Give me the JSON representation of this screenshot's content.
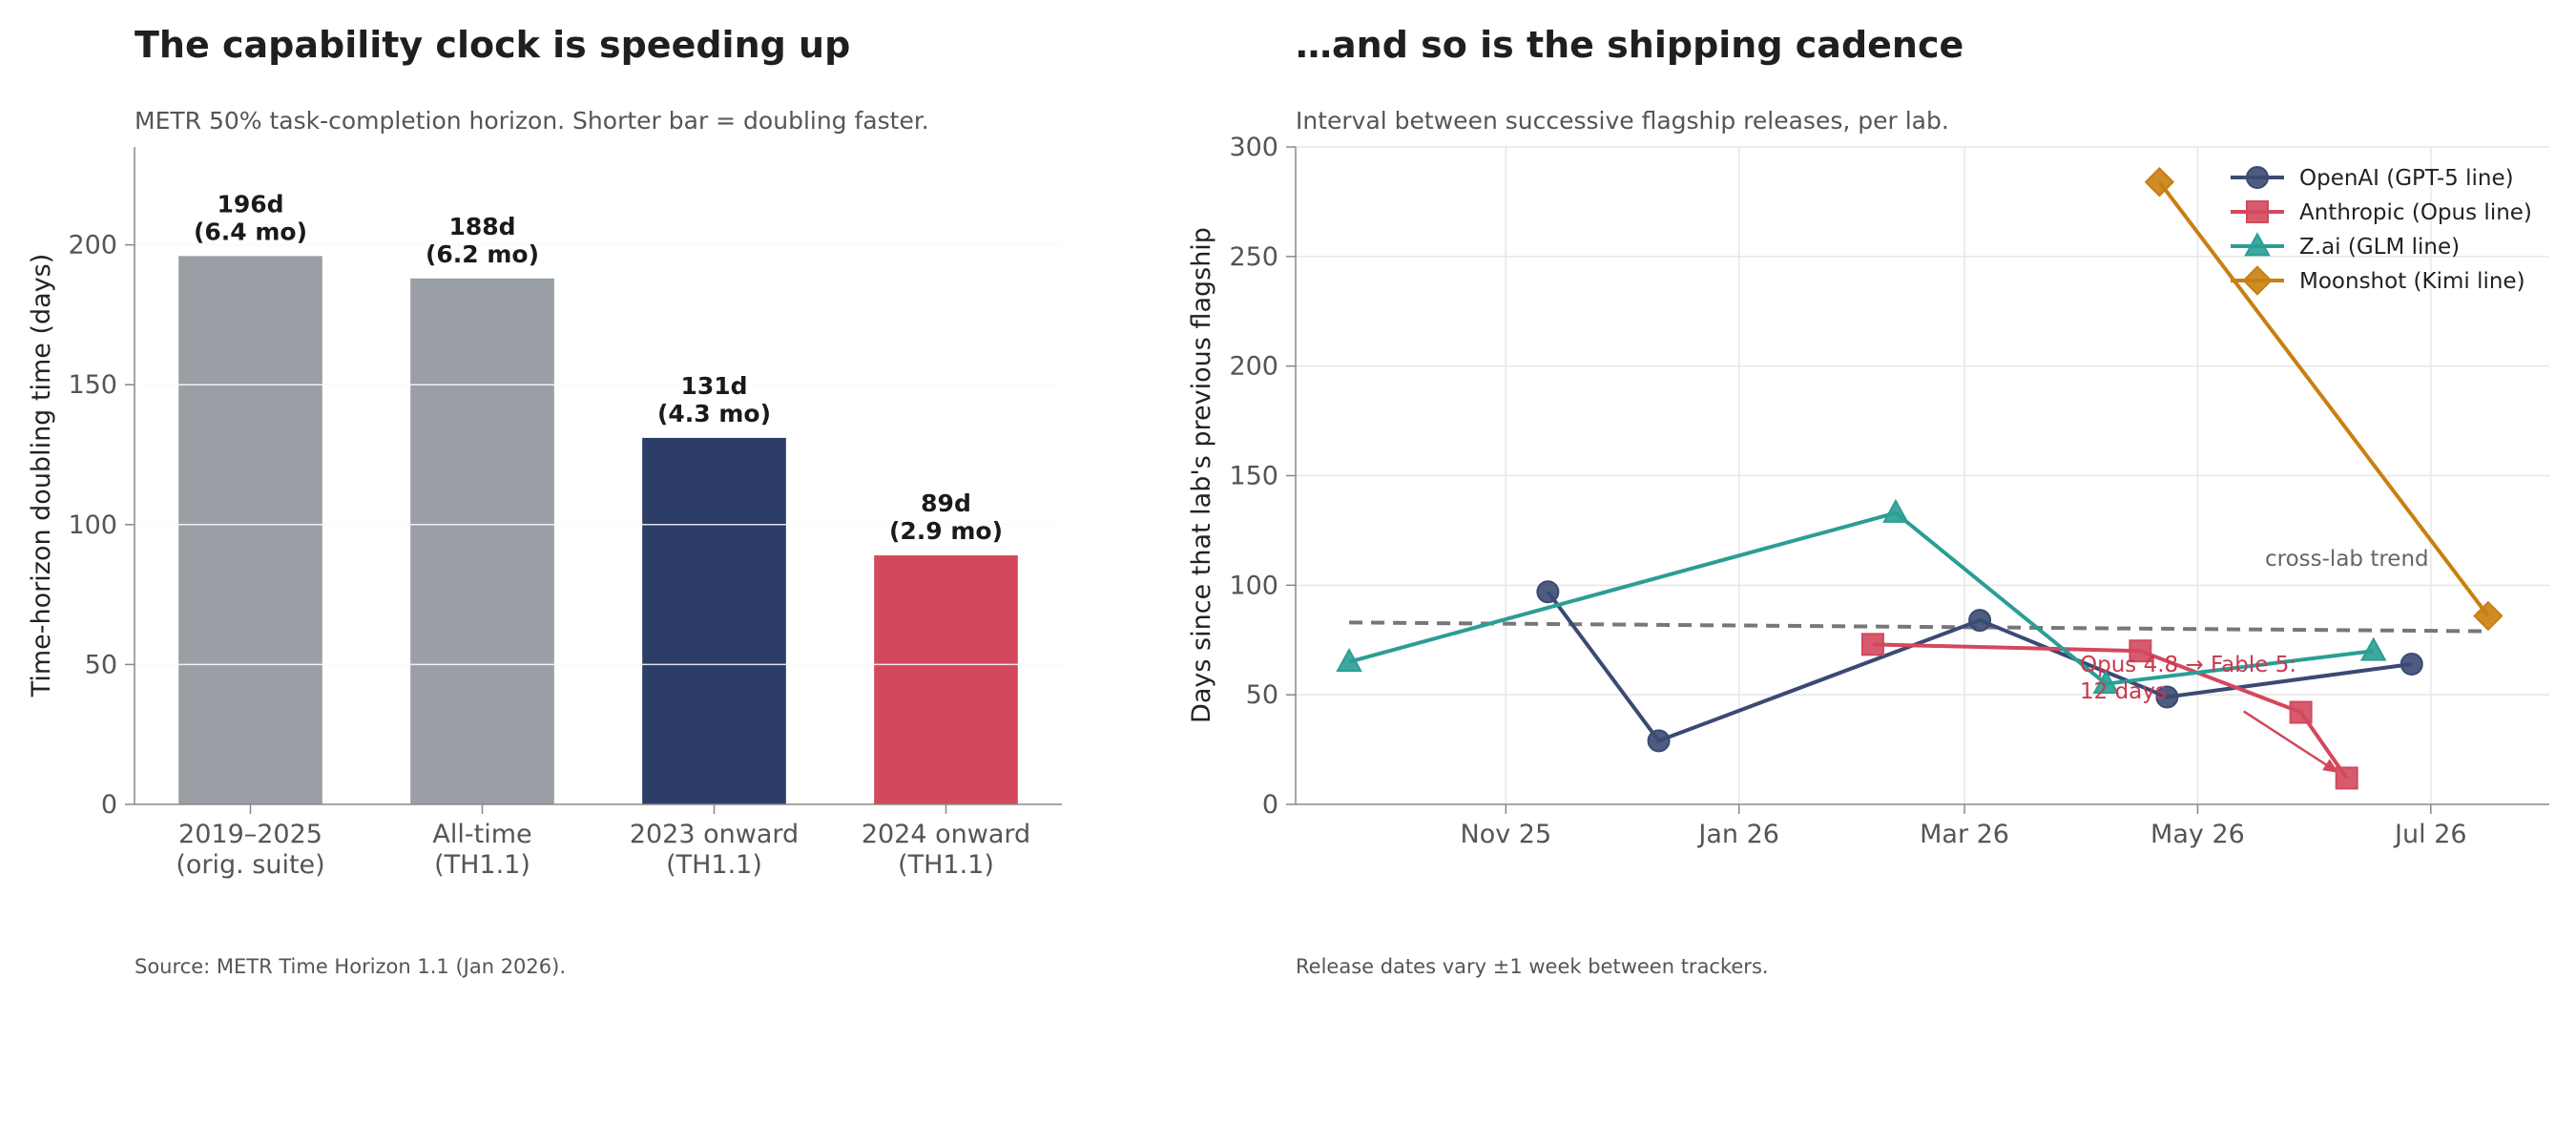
{
  "colors": {
    "grey_bar": "#9a9fa6",
    "navy": "#2c3d68",
    "red": "#d2495d",
    "openai": "#3b4a73",
    "anthropic": "#d2495d",
    "zai": "#2a9e94",
    "moonshot": "#c97f10",
    "trend": "#777777"
  },
  "chart_data": [
    {
      "type": "bar",
      "title": "The capability clock is speeding up",
      "subtitle": "METR 50% task-completion horizon. Shorter bar = doubling faster.",
      "ylabel": "Time-horizon doubling time (days)",
      "ylim": [
        0,
        235
      ],
      "yticks": [
        0,
        50,
        100,
        150,
        200
      ],
      "grid": "horizontal",
      "categories": [
        [
          "2019–2025",
          "(orig. suite)"
        ],
        [
          "All-time",
          "(TH1.1)"
        ],
        [
          "2023 onward",
          "(TH1.1)"
        ],
        [
          "2024 onward",
          "(TH1.1)"
        ]
      ],
      "values": [
        196,
        188,
        131,
        89
      ],
      "value_labels": [
        [
          "196d",
          "(6.4 mo)"
        ],
        [
          "188d",
          "(6.2 mo)"
        ],
        [
          "131d",
          "(4.3 mo)"
        ],
        [
          "89d",
          "(2.9 mo)"
        ]
      ],
      "bar_colors": [
        "#9a9fa6",
        "#9a9fa6",
        "#2c3d68",
        "#d2495d"
      ],
      "footnote": "Source: METR Time Horizon 1.1 (Jan 2026)."
    },
    {
      "type": "line",
      "title": "…and so is the shipping cadence",
      "subtitle": "Interval between successive flagship releases, per lab.",
      "ylabel": "Days since that lab's previous flagship",
      "ylim": [
        0,
        300
      ],
      "yticks": [
        0,
        50,
        100,
        150,
        200,
        250,
        300
      ],
      "xlim": [
        "2025-09-07",
        "2026-08-01"
      ],
      "xticks": [
        {
          "date": "2025-11-01",
          "label": "Nov 25"
        },
        {
          "date": "2026-01-01",
          "label": "Jan 26"
        },
        {
          "date": "2026-03-01",
          "label": "Mar 26"
        },
        {
          "date": "2026-05-01",
          "label": "May 26"
        },
        {
          "date": "2026-07-01",
          "label": "Jul 26"
        }
      ],
      "grid": "both",
      "legend_position": "top-right",
      "series": [
        {
          "name": "OpenAI (GPT-5 line)",
          "color": "#3b4a73",
          "marker": "circle",
          "points": [
            {
              "x": "2025-11-12",
              "y": 97
            },
            {
              "x": "2025-12-11",
              "y": 29
            },
            {
              "x": "2026-03-05",
              "y": 84
            },
            {
              "x": "2026-04-23",
              "y": 49
            },
            {
              "x": "2026-06-26",
              "y": 64
            }
          ]
        },
        {
          "name": "Anthropic (Opus line)",
          "color": "#d2495d",
          "marker": "square",
          "points": [
            {
              "x": "2026-02-05",
              "y": 73
            },
            {
              "x": "2026-04-16",
              "y": 70
            },
            {
              "x": "2026-05-28",
              "y": 42
            },
            {
              "x": "2026-06-09",
              "y": 12
            }
          ]
        },
        {
          "name": "Z.ai (GLM line)",
          "color": "#2a9e94",
          "marker": "triangle",
          "points": [
            {
              "x": "2025-09-21",
              "y": 65
            },
            {
              "x": "2026-02-11",
              "y": 133
            },
            {
              "x": "2026-04-07",
              "y": 55
            },
            {
              "x": "2026-06-16",
              "y": 70
            }
          ]
        },
        {
          "name": "Moonshot (Kimi line)",
          "color": "#c97f10",
          "marker": "diamond",
          "points": [
            {
              "x": "2026-04-21",
              "y": 284
            },
            {
              "x": "2026-07-16",
              "y": 86
            }
          ]
        }
      ],
      "trend": {
        "label": "cross-lab trend",
        "start": {
          "x": "2025-09-21",
          "y": 83
        },
        "end": {
          "x": "2026-07-16",
          "y": 79
        }
      },
      "annotation": {
        "text_line1": "Opus 4.8 → Fable 5:",
        "text_line2": "12 days",
        "target": {
          "x": "2026-06-09",
          "y": 12
        }
      },
      "footnote": "Release dates vary ±1 week between trackers."
    }
  ]
}
